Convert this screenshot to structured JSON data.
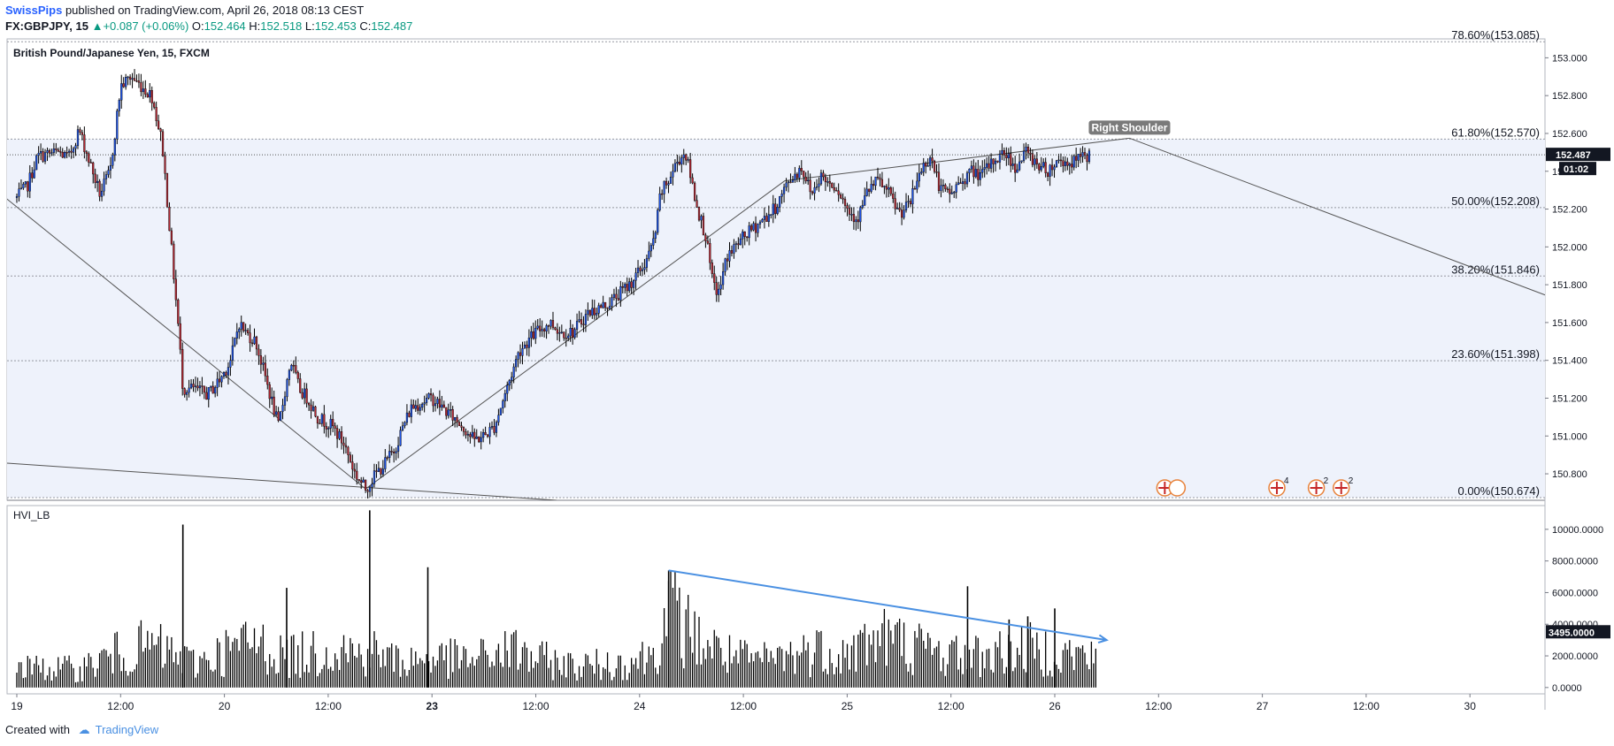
{
  "header": {
    "publisher": "SwissPips",
    "published_text": "published on TradingView.com, April 26, 2018 08:13 CEST",
    "symbol": "FX:GBPJPY, 15",
    "change_arrow": "▲",
    "change_text": "+0.087 (+0.06%)",
    "open_label": "O:",
    "open": "152.464",
    "high_label": "H:",
    "high": "152.518",
    "low_label": "L:",
    "low": "152.453",
    "close_label": "C:",
    "close": "152.487"
  },
  "footer": {
    "created_with": "Created with",
    "brand": "TradingView"
  },
  "colors": {
    "up": "#089981",
    "down": "#b22833",
    "candle": "#000000",
    "trend_arrow": "#4a90e2",
    "fib_fill": "#eef2fb"
  },
  "chart_data": [
    {
      "type": "candlestick",
      "title": "British Pound/Japanese Yen, 15, FXCM",
      "y_ticks": [
        150.8,
        151.0,
        151.2,
        151.4,
        151.6,
        151.8,
        152.0,
        152.2,
        152.4,
        152.6,
        152.8,
        153.0
      ],
      "y_tick_labels": [
        "150.800",
        "151.000",
        "151.200",
        "151.400",
        "151.600",
        "151.800",
        "152.000",
        "152.200",
        "152.400",
        "152.600",
        "152.800",
        "153.000"
      ],
      "ylim": [
        150.66,
        153.1
      ],
      "x_tick_labels": [
        "19",
        "12:00",
        "20",
        "12:00",
        "23",
        "12:00",
        "24",
        "12:00",
        "25",
        "12:00",
        "26",
        "12:00",
        "27",
        "12:00",
        "30"
      ],
      "x_tick_bold": [
        false,
        false,
        false,
        false,
        true,
        false,
        false,
        false,
        false,
        false,
        false,
        false,
        false,
        false,
        false
      ],
      "last_price": "152.487",
      "countdown": "01:02",
      "fib_levels": [
        {
          "value": 153.085,
          "label": "78.60%(153.085)"
        },
        {
          "value": 152.57,
          "label": "61.80%(152.570)"
        },
        {
          "value": 152.208,
          "label": "50.00%(152.208)"
        },
        {
          "value": 151.846,
          "label": "38.20%(151.846)"
        },
        {
          "value": 151.398,
          "label": "23.60%(151.398)"
        },
        {
          "value": 150.674,
          "label": "0.00%(150.674)"
        }
      ],
      "annotations": [
        {
          "text": "Right Shoulder",
          "time": 5.36,
          "price": 152.575
        }
      ],
      "event_markers": [
        {
          "time": 5.53,
          "count": ""
        },
        {
          "time": 6.07,
          "count": "4"
        },
        {
          "time": 6.26,
          "count": "2"
        },
        {
          "time": 6.38,
          "count": "2"
        }
      ],
      "price_path": [
        [
          0.0,
          152.26
        ],
        [
          0.05,
          152.32
        ],
        [
          0.1,
          152.48
        ],
        [
          0.2,
          152.5
        ],
        [
          0.25,
          152.47
        ],
        [
          0.3,
          152.62
        ],
        [
          0.35,
          152.45
        ],
        [
          0.4,
          152.28
        ],
        [
          0.45,
          152.4
        ],
        [
          0.5,
          152.85
        ],
        [
          0.55,
          152.9
        ],
        [
          0.6,
          152.85
        ],
        [
          0.65,
          152.8
        ],
        [
          0.7,
          152.55
        ],
        [
          0.78,
          151.55
        ],
        [
          0.8,
          151.25
        ],
        [
          0.85,
          151.25
        ],
        [
          0.92,
          151.22
        ],
        [
          0.98,
          151.3
        ],
        [
          1.03,
          151.4
        ],
        [
          1.07,
          151.6
        ],
        [
          1.1,
          151.55
        ],
        [
          1.15,
          151.5
        ],
        [
          1.2,
          151.3
        ],
        [
          1.26,
          151.05
        ],
        [
          1.32,
          151.4
        ],
        [
          1.36,
          151.25
        ],
        [
          1.4,
          151.2
        ],
        [
          1.45,
          151.1
        ],
        [
          1.52,
          151.05
        ],
        [
          1.58,
          150.95
        ],
        [
          1.63,
          150.8
        ],
        [
          1.68,
          150.72
        ],
        [
          1.73,
          150.8
        ],
        [
          1.77,
          150.85
        ],
        [
          1.82,
          150.93
        ],
        [
          1.86,
          151.05
        ],
        [
          1.9,
          151.15
        ],
        [
          1.95,
          151.18
        ],
        [
          2.0,
          151.2
        ],
        [
          2.05,
          151.15
        ],
        [
          2.1,
          151.1
        ],
        [
          2.15,
          151.05
        ],
        [
          2.2,
          150.98
        ],
        [
          2.25,
          151.0
        ],
        [
          2.3,
          151.05
        ],
        [
          2.36,
          151.25
        ],
        [
          2.42,
          151.45
        ],
        [
          2.5,
          151.55
        ],
        [
          2.57,
          151.6
        ],
        [
          2.62,
          151.55
        ],
        [
          2.68,
          151.55
        ],
        [
          2.75,
          151.65
        ],
        [
          2.85,
          151.7
        ],
        [
          2.95,
          151.8
        ],
        [
          3.02,
          151.9
        ],
        [
          3.06,
          152.0
        ],
        [
          3.08,
          152.1
        ],
        [
          3.1,
          152.28
        ],
        [
          3.14,
          152.35
        ],
        [
          3.18,
          152.45
        ],
        [
          3.22,
          152.5
        ],
        [
          3.25,
          152.35
        ],
        [
          3.28,
          152.2
        ],
        [
          3.32,
          152.05
        ],
        [
          3.35,
          151.82
        ],
        [
          3.38,
          151.75
        ],
        [
          3.42,
          151.95
        ],
        [
          3.5,
          152.05
        ],
        [
          3.55,
          152.1
        ],
        [
          3.6,
          152.15
        ],
        [
          3.65,
          152.2
        ],
        [
          3.72,
          152.35
        ],
        [
          3.78,
          152.42
        ],
        [
          3.83,
          152.28
        ],
        [
          3.87,
          152.38
        ],
        [
          3.9,
          152.35
        ],
        [
          3.95,
          152.32
        ],
        [
          4.0,
          152.2
        ],
        [
          4.05,
          152.15
        ],
        [
          4.1,
          152.3
        ],
        [
          4.15,
          152.35
        ],
        [
          4.2,
          152.28
        ],
        [
          4.25,
          152.18
        ],
        [
          4.3,
          152.22
        ],
        [
          4.35,
          152.4
        ],
        [
          4.4,
          152.48
        ],
        [
          4.45,
          152.3
        ],
        [
          4.5,
          152.28
        ],
        [
          4.55,
          152.35
        ],
        [
          4.6,
          152.4
        ],
        [
          4.65,
          152.38
        ],
        [
          4.7,
          152.45
        ],
        [
          4.76,
          152.5
        ],
        [
          4.81,
          152.42
        ],
        [
          4.86,
          152.5
        ],
        [
          4.91,
          152.45
        ],
        [
          4.96,
          152.4
        ],
        [
          5.02,
          152.46
        ],
        [
          5.07,
          152.44
        ],
        [
          5.13,
          152.47
        ],
        [
          5.17,
          152.487
        ]
      ],
      "trendlines": [
        {
          "from": [
            -0.1,
            152.3
          ],
          "to": [
            1.68,
            150.72
          ]
        },
        {
          "from": [
            1.68,
            150.72
          ],
          "to": [
            3.7,
            152.35
          ]
        },
        {
          "from": [
            3.7,
            152.35
          ],
          "to": [
            5.36,
            152.575
          ]
        },
        {
          "from": [
            5.36,
            152.575
          ],
          "to": [
            7.4,
            151.73
          ]
        },
        {
          "from": [
            -0.1,
            150.86
          ],
          "to": [
            2.6,
            150.66
          ]
        }
      ]
    },
    {
      "type": "bar",
      "title": "HVI_LB",
      "y_ticks": [
        0,
        2000,
        4000,
        6000,
        8000,
        10000
      ],
      "y_tick_labels": [
        "0.0000",
        "2000.0000",
        "4000.0000",
        "6000.0000",
        "8000.0000",
        "10000.0000"
      ],
      "ylim": [
        -400,
        11500
      ],
      "last_value": "3495.0000",
      "volume_path": [
        [
          0.0,
          1400
        ],
        [
          0.3,
          1300
        ],
        [
          0.45,
          2200
        ],
        [
          0.55,
          2600
        ],
        [
          0.65,
          2900
        ],
        [
          0.75,
          2300
        ],
        [
          0.85,
          1700
        ],
        [
          1.0,
          2500
        ],
        [
          1.15,
          3200
        ],
        [
          1.25,
          2400
        ],
        [
          1.35,
          2200
        ],
        [
          1.55,
          2900
        ],
        [
          1.65,
          2300
        ],
        [
          1.72,
          2500
        ],
        [
          1.85,
          1800
        ],
        [
          2.0,
          2100
        ],
        [
          2.2,
          1900
        ],
        [
          2.3,
          2400
        ],
        [
          2.4,
          2600
        ],
        [
          2.5,
          2000
        ],
        [
          2.7,
          1500
        ],
        [
          2.9,
          1700
        ],
        [
          3.05,
          2200
        ],
        [
          3.15,
          5300
        ],
        [
          3.25,
          3700
        ],
        [
          3.4,
          2400
        ],
        [
          3.55,
          1800
        ],
        [
          3.7,
          2200
        ],
        [
          3.85,
          2700
        ],
        [
          4.0,
          2400
        ],
        [
          4.15,
          3600
        ],
        [
          4.3,
          3000
        ],
        [
          4.45,
          2400
        ],
        [
          4.6,
          2200
        ],
        [
          4.75,
          2500
        ],
        [
          4.9,
          2700
        ],
        [
          5.1,
          2300
        ],
        [
          5.2,
          2100
        ]
      ],
      "volume_spikes": [
        [
          0.8,
          10300
        ],
        [
          1.3,
          6300
        ],
        [
          1.7,
          11200
        ],
        [
          1.98,
          7600
        ],
        [
          3.14,
          7400
        ],
        [
          4.58,
          6400
        ],
        [
          4.78,
          4300
        ],
        [
          4.87,
          4500
        ],
        [
          5.0,
          5000
        ]
      ],
      "trend_arrow": {
        "from": [
          3.14,
          7400
        ],
        "to": [
          5.25,
          3000
        ]
      }
    }
  ]
}
